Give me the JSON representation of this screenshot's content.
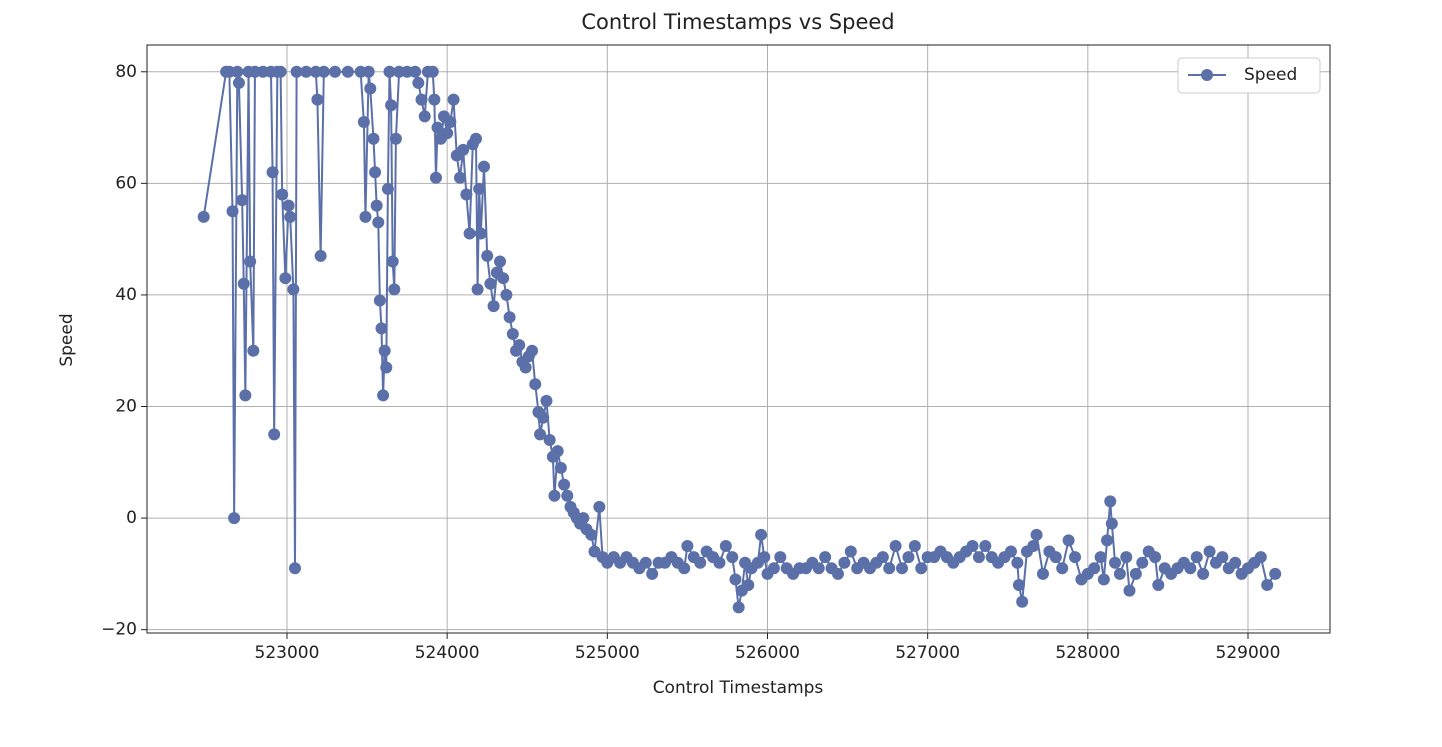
{
  "chart_data": {
    "type": "line",
    "title": "Control Timestamps vs Speed",
    "x_label": "Control Timestamps",
    "y_label": "Speed",
    "x": [
      522480,
      522620,
      522640,
      522660,
      522670,
      522690,
      522700,
      522720,
      522730,
      522740,
      522760,
      522770,
      522790,
      522800,
      522850,
      522900,
      522910,
      522920,
      522940,
      522960,
      522970,
      522990,
      523010,
      523020,
      523040,
      523050,
      523060,
      523120,
      523180,
      523190,
      523210,
      523230,
      523300,
      523380,
      523460,
      523480,
      523490,
      523510,
      523520,
      523540,
      523550,
      523560,
      523570,
      523580,
      523590,
      523600,
      523610,
      523620,
      523630,
      523640,
      523650,
      523660,
      523670,
      523680,
      523700,
      523750,
      523800,
      523820,
      523840,
      523860,
      523880,
      523910,
      523920,
      523930,
      523940,
      523960,
      523980,
      524000,
      524020,
      524040,
      524060,
      524080,
      524100,
      524120,
      524140,
      524160,
      524180,
      524190,
      524200,
      524210,
      524230,
      524250,
      524270,
      524290,
      524310,
      524330,
      524350,
      524370,
      524390,
      524410,
      524430,
      524450,
      524470,
      524490,
      524510,
      524530,
      524550,
      524570,
      524580,
      524600,
      524620,
      524640,
      524660,
      524670,
      524690,
      524710,
      524730,
      524750,
      524770,
      524790,
      524810,
      524830,
      524850,
      524870,
      524900,
      524920,
      524950,
      524970,
      525000,
      525040,
      525080,
      525120,
      525160,
      525200,
      525240,
      525280,
      525320,
      525360,
      525400,
      525440,
      525480,
      525500,
      525540,
      525580,
      525620,
      525660,
      525700,
      525740,
      525780,
      525800,
      525820,
      525840,
      525860,
      525880,
      525900,
      525940,
      525960,
      525980,
      526000,
      526040,
      526080,
      526120,
      526160,
      526200,
      526240,
      526280,
      526320,
      526360,
      526400,
      526440,
      526480,
      526520,
      526560,
      526600,
      526640,
      526680,
      526720,
      526760,
      526800,
      526840,
      526880,
      526920,
      526960,
      527000,
      527040,
      527080,
      527120,
      527160,
      527200,
      527240,
      527280,
      527320,
      527360,
      527400,
      527440,
      527480,
      527520,
      527560,
      527570,
      527590,
      527620,
      527660,
      527680,
      527720,
      527760,
      527800,
      527840,
      527880,
      527920,
      527960,
      528000,
      528040,
      528080,
      528100,
      528120,
      528140,
      528150,
      528170,
      528200,
      528240,
      528260,
      528300,
      528340,
      528380,
      528420,
      528440,
      528480,
      528520,
      528560,
      528600,
      528640,
      528680,
      528720,
      528760,
      528800,
      528840,
      528880,
      528920,
      528960,
      529000,
      529040,
      529080,
      529120,
      529170
    ],
    "series": [
      {
        "name": "Speed",
        "color": "#5b70a8",
        "values": [
          54,
          80,
          80,
          55,
          0,
          80,
          78,
          57,
          42,
          22,
          80,
          46,
          30,
          80,
          80,
          80,
          62,
          15,
          80,
          80,
          58,
          43,
          56,
          54,
          41,
          -9,
          80,
          80,
          80,
          75,
          47,
          80,
          80,
          80,
          80,
          71,
          54,
          80,
          77,
          68,
          62,
          56,
          53,
          39,
          34,
          22,
          30,
          27,
          59,
          80,
          74,
          46,
          41,
          68,
          80,
          80,
          80,
          78,
          75,
          72,
          80,
          80,
          75,
          61,
          70,
          68,
          72,
          69,
          71,
          75,
          65,
          61,
          66,
          58,
          51,
          67,
          68,
          41,
          59,
          51,
          63,
          47,
          42,
          38,
          44,
          46,
          43,
          40,
          36,
          33,
          30,
          31,
          28,
          27,
          29,
          30,
          24,
          19,
          15,
          18,
          21,
          14,
          11,
          4,
          12,
          9,
          6,
          4,
          2,
          1,
          0,
          -1,
          0,
          -2,
          -3,
          -6,
          2,
          -7,
          -8,
          -7,
          -8,
          -7,
          -8,
          -9,
          -8,
          -10,
          -8,
          -8,
          -7,
          -8,
          -9,
          -5,
          -7,
          -8,
          -6,
          -7,
          -8,
          -5,
          -7,
          -11,
          -16,
          -13,
          -8,
          -12,
          -9,
          -8,
          -3,
          -7,
          -10,
          -9,
          -7,
          -9,
          -10,
          -9,
          -9,
          -8,
          -9,
          -7,
          -9,
          -10,
          -8,
          -6,
          -9,
          -8,
          -9,
          -8,
          -7,
          -9,
          -5,
          -9,
          -7,
          -5,
          -9,
          -7,
          -7,
          -6,
          -7,
          -8,
          -7,
          -6,
          -5,
          -7,
          -5,
          -7,
          -8,
          -7,
          -6,
          -8,
          -12,
          -15,
          -6,
          -5,
          -3,
          -10,
          -6,
          -7,
          -9,
          -4,
          -7,
          -11,
          -10,
          -9,
          -7,
          -11,
          -4,
          3,
          -1,
          -8,
          -10,
          -7,
          -13,
          -10,
          -8,
          -6,
          -7,
          -12,
          -9,
          -10,
          -9,
          -8,
          -9,
          -7,
          -10,
          -6,
          -8,
          -7,
          -9,
          -8,
          -10,
          -9,
          -8,
          -7,
          -12,
          -10
        ]
      }
    ],
    "xlim": [
      522126,
      529512
    ],
    "ylim": [
      -20.6,
      84.8
    ],
    "xticks": [
      523000,
      524000,
      525000,
      526000,
      527000,
      528000,
      529000
    ],
    "yticks": [
      {
        "value": -20,
        "label": "−20"
      },
      0,
      20,
      40,
      60,
      80
    ],
    "grid": true,
    "legend": "upper right"
  }
}
